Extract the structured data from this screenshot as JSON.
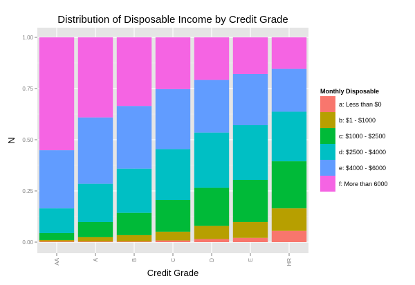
{
  "chart_data": {
    "type": "bar",
    "stacked": true,
    "title": "Distribution of Disposable Income by Credit Grade",
    "xlabel": "Credit Grade",
    "ylabel": "N",
    "ylim": [
      0,
      1
    ],
    "yticks": [
      "0.00",
      "0.25",
      "0.50",
      "0.75",
      "1.00"
    ],
    "grid": true,
    "legend_position": "right",
    "legend_title": "Monthly Disposable",
    "categories": [
      "AA",
      "A",
      "B",
      "C",
      "D",
      "E",
      "HR"
    ],
    "series": [
      {
        "name": "a: Less than $0",
        "color": "#F8766D",
        "values": [
          0.003,
          0.003,
          0.003,
          0.008,
          0.015,
          0.021,
          0.055
        ]
      },
      {
        "name": "b: $1 - $1000",
        "color": "#B79F00",
        "values": [
          0.007,
          0.021,
          0.031,
          0.043,
          0.064,
          0.077,
          0.11
        ]
      },
      {
        "name": "c: $1000 - $2500",
        "color": "#00BA38",
        "values": [
          0.034,
          0.074,
          0.109,
          0.155,
          0.186,
          0.206,
          0.23
        ]
      },
      {
        "name": "d: $2500 - $4000",
        "color": "#00BFC4",
        "values": [
          0.121,
          0.187,
          0.216,
          0.248,
          0.27,
          0.267,
          0.242
        ]
      },
      {
        "name": "e: $4000 - $6000",
        "color": "#619CFF",
        "values": [
          0.284,
          0.324,
          0.306,
          0.293,
          0.257,
          0.25,
          0.209
        ]
      },
      {
        "name": "f: More than 6000",
        "color": "#F564E3",
        "values": [
          0.551,
          0.391,
          0.335,
          0.253,
          0.208,
          0.179,
          0.154
        ]
      }
    ]
  }
}
